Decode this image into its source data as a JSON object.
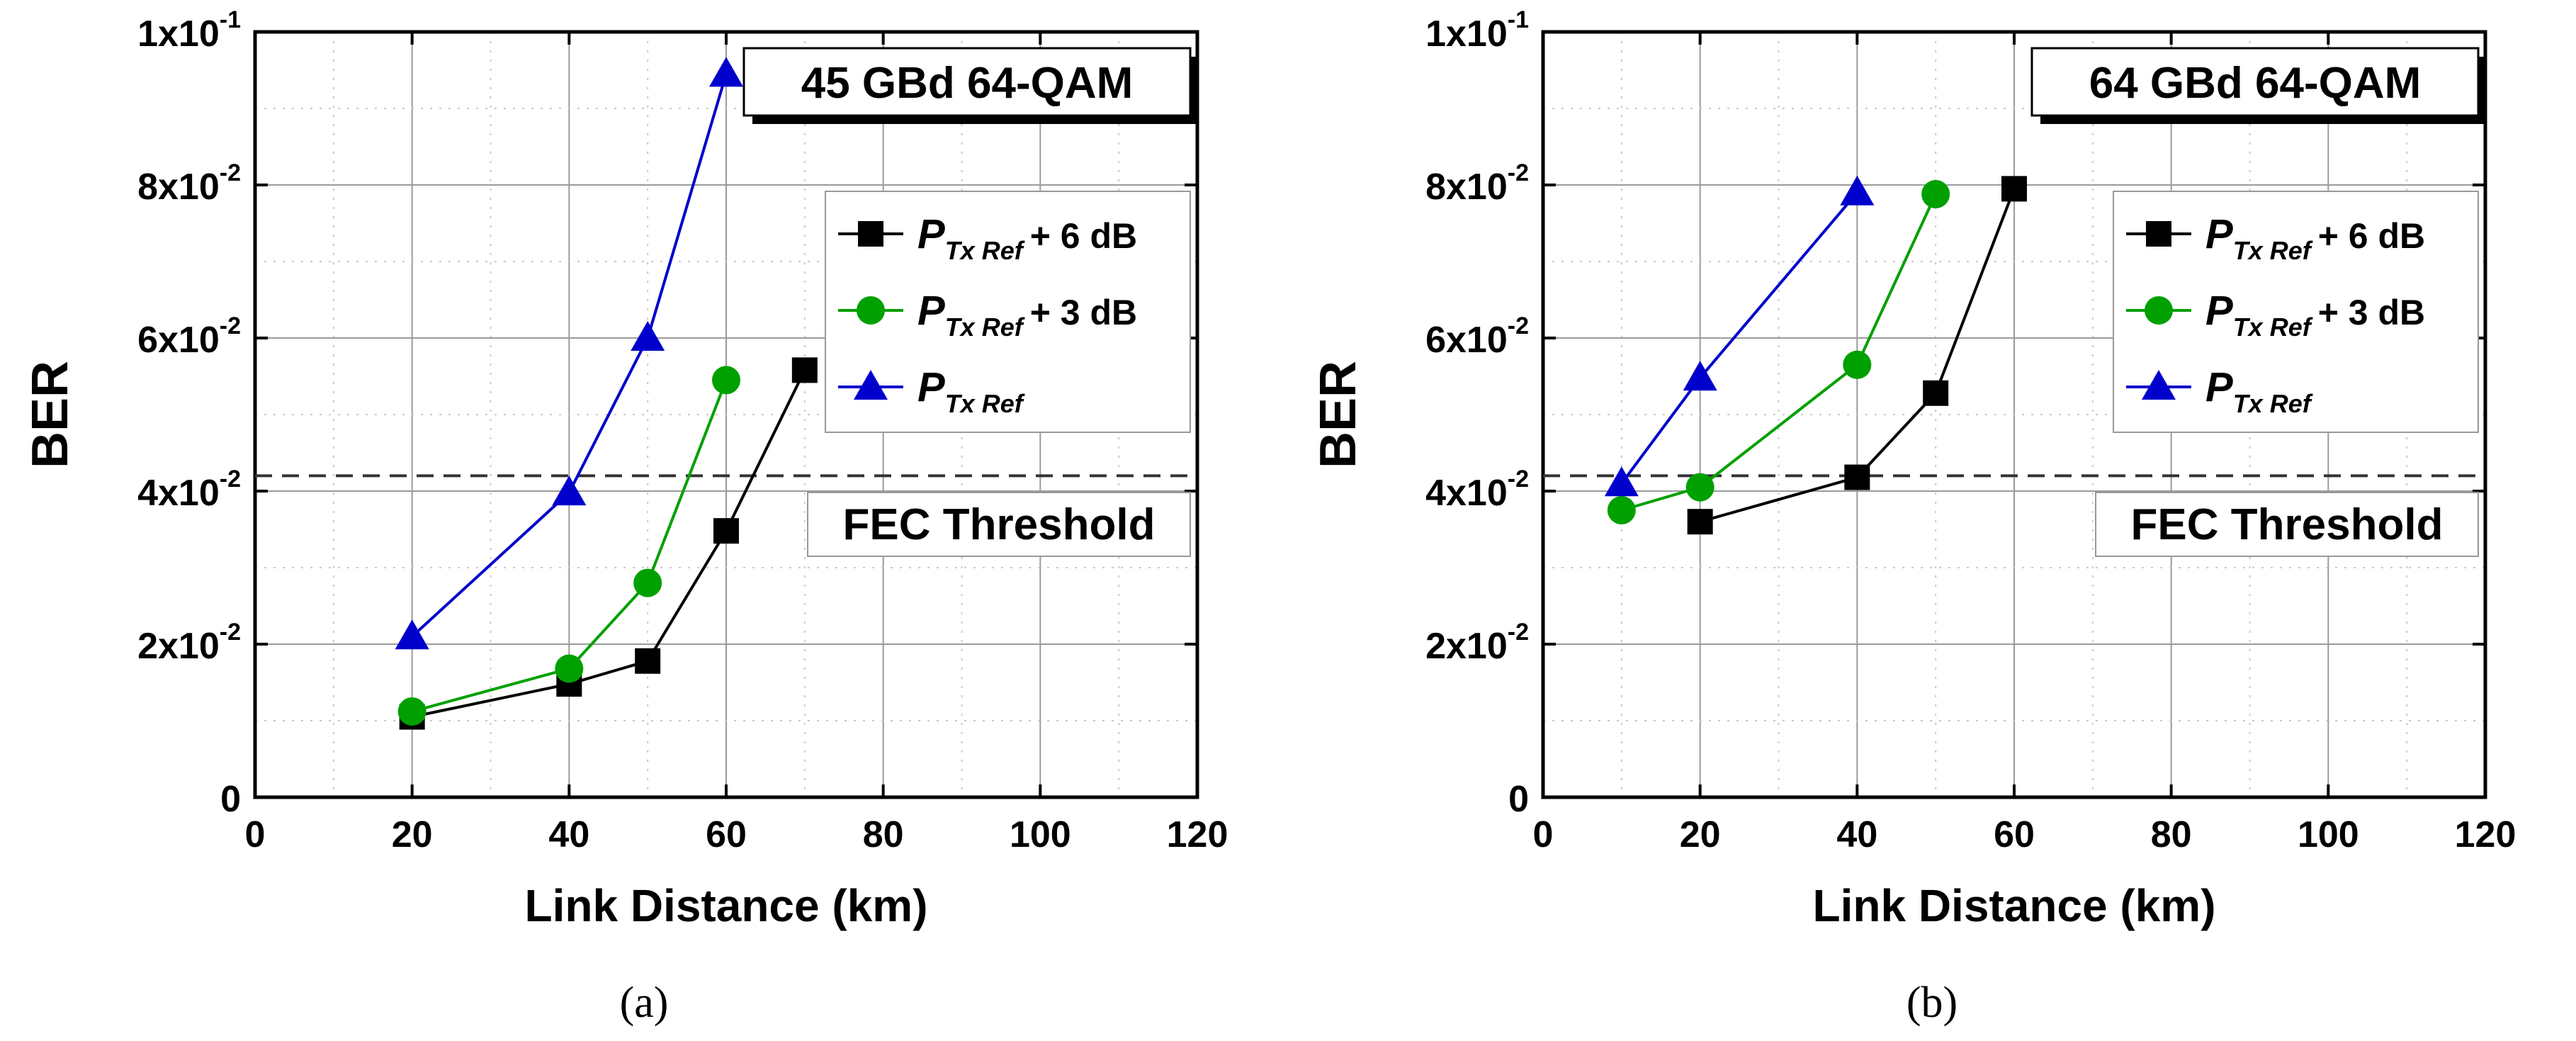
{
  "chart_data": [
    {
      "type": "line",
      "panel_label": "(a)",
      "title": "45 GBd 64-QAM",
      "xlabel": "Link Distance (km)",
      "ylabel": "BER",
      "xlim": [
        0,
        120
      ],
      "ylim": [
        0,
        0.1
      ],
      "xticks": [
        "0",
        "20",
        "40",
        "60",
        "80",
        "100",
        "120"
      ],
      "yticks": [
        {
          "m": "0",
          "e": ""
        },
        {
          "m": "2x10",
          "e": "-2"
        },
        {
          "m": "4x10",
          "e": "-2"
        },
        {
          "m": "6x10",
          "e": "-2"
        },
        {
          "m": "8x10",
          "e": "-2"
        },
        {
          "m": "1x10",
          "e": "-1"
        }
      ],
      "threshold": {
        "value": 0.042,
        "label": "FEC Threshold"
      },
      "legend_position": "top-right",
      "series": [
        {
          "name": "P_TxRef + 6 dB",
          "label_main": "P",
          "label_sub": "Tx Ref",
          "label_suffix": "+ 6 dB",
          "color": "#000000",
          "marker": "square",
          "x": [
            20,
            40,
            50,
            60,
            70
          ],
          "y": [
            0.0105,
            0.0148,
            0.0178,
            0.0348,
            0.0558
          ]
        },
        {
          "name": "P_TxRef + 3 dB",
          "label_main": "P",
          "label_sub": "Tx Ref",
          "label_suffix": "+ 3 dB",
          "color": "#00a000",
          "marker": "circle",
          "x": [
            20,
            40,
            50,
            60
          ],
          "y": [
            0.0112,
            0.0168,
            0.028,
            0.0545
          ]
        },
        {
          "name": "P_TxRef",
          "label_main": "P",
          "label_sub": "Tx Ref",
          "label_suffix": "",
          "color": "#0000cc",
          "marker": "triangle",
          "x": [
            20,
            40,
            50,
            60
          ],
          "y": [
            0.021,
            0.0398,
            0.06,
            0.0945
          ]
        }
      ]
    },
    {
      "type": "line",
      "panel_label": "(b)",
      "title": "64 GBd 64-QAM",
      "xlabel": "Link Distance (km)",
      "ylabel": "BER",
      "xlim": [
        0,
        120
      ],
      "ylim": [
        0,
        0.1
      ],
      "xticks": [
        "0",
        "20",
        "40",
        "60",
        "80",
        "100",
        "120"
      ],
      "yticks": [
        {
          "m": "0",
          "e": ""
        },
        {
          "m": "2x10",
          "e": "-2"
        },
        {
          "m": "4x10",
          "e": "-2"
        },
        {
          "m": "6x10",
          "e": "-2"
        },
        {
          "m": "8x10",
          "e": "-2"
        },
        {
          "m": "1x10",
          "e": "-1"
        }
      ],
      "threshold": {
        "value": 0.042,
        "label": "FEC Threshold"
      },
      "legend_position": "top-right",
      "series": [
        {
          "name": "P_TxRef + 6 dB",
          "label_main": "P",
          "label_sub": "Tx Ref",
          "label_suffix": "+ 6 dB",
          "color": "#000000",
          "marker": "square",
          "x": [
            20,
            40,
            50,
            60
          ],
          "y": [
            0.036,
            0.0418,
            0.0528,
            0.0795
          ]
        },
        {
          "name": "P_TxRef + 3 dB",
          "label_main": "P",
          "label_sub": "Tx Ref",
          "label_suffix": "+ 3 dB",
          "color": "#00a000",
          "marker": "circle",
          "x": [
            10,
            20,
            40,
            50
          ],
          "y": [
            0.0375,
            0.0405,
            0.0565,
            0.0788
          ]
        },
        {
          "name": "P_TxRef",
          "label_main": "P",
          "label_sub": "Tx Ref",
          "label_suffix": "",
          "color": "#0000cc",
          "marker": "triangle",
          "x": [
            10,
            20,
            40
          ],
          "y": [
            0.041,
            0.0548,
            0.079
          ]
        }
      ]
    }
  ]
}
